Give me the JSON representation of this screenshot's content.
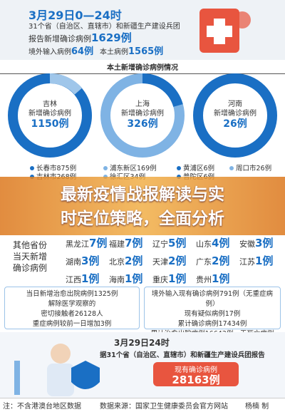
{
  "header": {
    "date": "3月29日0—24时",
    "scope": "31个省（自治区、直辖市）和新疆生产建设兵团",
    "report_label": "报告新增确诊病例",
    "report_value": "1629例",
    "imported_label": "境外输入病例",
    "imported_value": "64例",
    "local_label": "本土病例",
    "local_value": "1565例"
  },
  "section_title": "本土新增确诊病例情况",
  "regions": [
    {
      "name": "吉林",
      "label": "新增确诊病例",
      "value": "1150例"
    },
    {
      "name": "上海",
      "label": "新增确诊病例",
      "value": "326例"
    },
    {
      "name": "河南",
      "label": "新增确诊病例",
      "value": "26例"
    }
  ],
  "legend": [
    "长春市875例",
    "浦东新区169例",
    "黄浦区6例",
    "周口市26例",
    "吉林市268例",
    "徐汇区34例",
    "普陀区6例"
  ],
  "overlay_title": [
    "最新疫情战报解读与实",
    "时定位策略，全面分析"
  ],
  "other": {
    "lines": [
      "其他省份",
      "当天新增",
      "确诊病例"
    ],
    "items": [
      {
        "name": "黑龙江",
        "value": "7例"
      },
      {
        "name": "福建",
        "value": "7例"
      },
      {
        "name": "辽宁",
        "value": "5例"
      },
      {
        "name": "山东",
        "value": "4例"
      },
      {
        "name": "安徽",
        "value": "3例"
      },
      {
        "name": "湖南",
        "value": "3例"
      },
      {
        "name": "北京",
        "value": "2例"
      },
      {
        "name": "天津",
        "value": "2例"
      },
      {
        "name": "广东",
        "value": "2例"
      },
      {
        "name": "江苏",
        "value": "1例"
      },
      {
        "name": "江西",
        "value": "1例"
      },
      {
        "name": "海南",
        "value": "1例"
      },
      {
        "name": "重庆",
        "value": "1例"
      },
      {
        "name": "贵州",
        "value": "1例"
      }
    ]
  },
  "left_box": [
    "当日新增治愈出院病例1325例",
    "解除医学观察的",
    "密切接触者26128人",
    "重症病例较前一日增加3例"
  ],
  "right_box": [
    "境外输入现有确诊病例791例（无重症病例）",
    "现有疑似病例17例",
    "累计确诊病例17434例",
    "累计治愈出院病例16643例，无死亡病例"
  ],
  "footer": {
    "date": "3月29日24时",
    "scope": "据31个省（自治区、直辖市）和新疆生产建设兵团报告",
    "current_label": "现有确诊病例",
    "current_value": "28163例"
  },
  "notes": [
    "注：不含港澳台地区数据",
    "数据来源：国家卫生健康委员会官方网站",
    "杨楠 制"
  ]
}
